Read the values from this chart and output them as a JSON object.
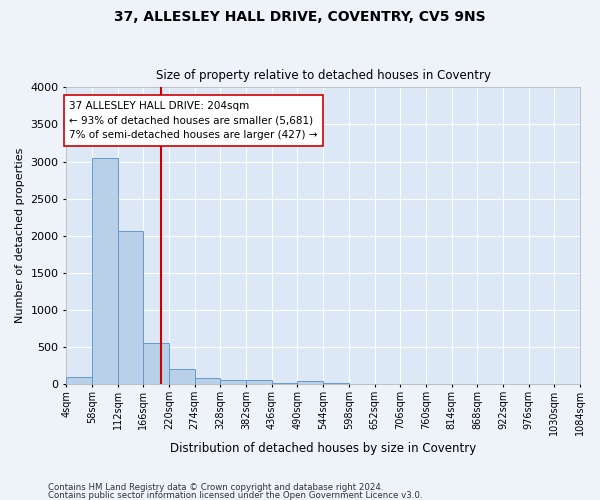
{
  "title1": "37, ALLESLEY HALL DRIVE, COVENTRY, CV5 9NS",
  "title2": "Size of property relative to detached houses in Coventry",
  "xlabel": "Distribution of detached houses by size in Coventry",
  "ylabel": "Number of detached properties",
  "bar_color": "#b8d0e8",
  "bar_edge_color": "#6699cc",
  "background_color": "#dce8f5",
  "fig_background": "#eef3f9",
  "grid_color": "#ffffff",
  "vline_x": 204,
  "vline_color": "#cc0000",
  "annotation_text": "37 ALLESLEY HALL DRIVE: 204sqm\n← 93% of detached houses are smaller (5,681)\n7% of semi-detached houses are larger (427) →",
  "annotation_box_color": "#ffffff",
  "annotation_box_edge": "#cc0000",
  "footnote1": "Contains HM Land Registry data © Crown copyright and database right 2024.",
  "footnote2": "Contains public sector information licensed under the Open Government Licence v3.0.",
  "bin_edges": [
    4,
    58,
    112,
    166,
    220,
    274,
    328,
    382,
    436,
    490,
    544,
    598,
    652,
    706,
    760,
    814,
    868,
    922,
    976,
    1030,
    1084
  ],
  "bar_heights": [
    100,
    3050,
    2060,
    560,
    200,
    85,
    60,
    55,
    20,
    45,
    20,
    0,
    0,
    0,
    0,
    0,
    0,
    0,
    0,
    0
  ],
  "ylim": [
    0,
    4000
  ],
  "yticks": [
    0,
    500,
    1000,
    1500,
    2000,
    2500,
    3000,
    3500,
    4000
  ]
}
